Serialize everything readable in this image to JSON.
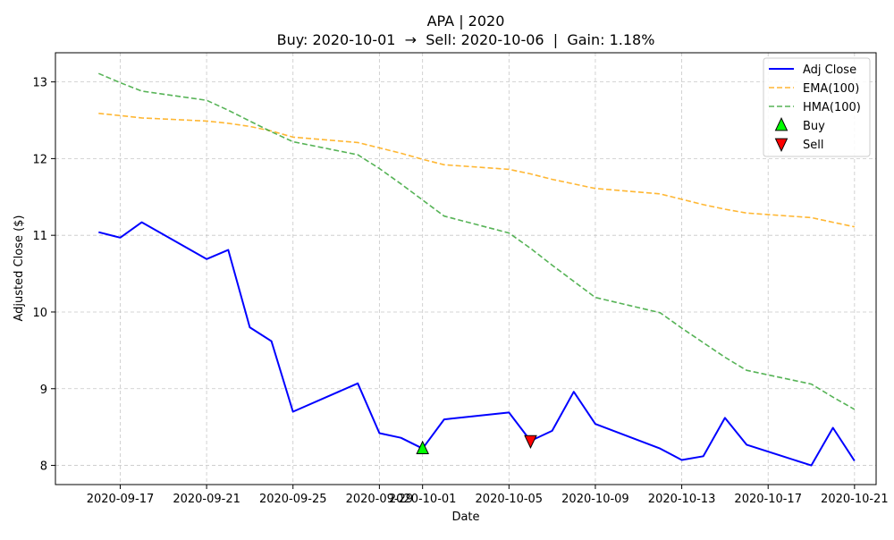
{
  "chart_data": {
    "type": "line",
    "title": "APA | 2020",
    "subtitle": "Buy: 2020-10-01  →  Sell: 2020-10-06  |  Gain: 1.18%",
    "xlabel": "Date",
    "ylabel": "Adjusted Close ($)",
    "ylim": [
      7.75,
      13.38
    ],
    "xlim": [
      "2020-09-14",
      "2020-10-22"
    ],
    "grid": true,
    "legend_position": "top-right",
    "x_ticks": [
      "2020-09-17",
      "2020-09-21",
      "2020-09-25",
      "2020-09-29",
      "2020-10-01",
      "2020-10-05",
      "2020-10-09",
      "2020-10-13",
      "2020-10-17",
      "2020-10-21"
    ],
    "y_ticks": [
      8,
      9,
      10,
      11,
      12,
      13
    ],
    "x": [
      "2020-09-16",
      "2020-09-17",
      "2020-09-18",
      "2020-09-21",
      "2020-09-22",
      "2020-09-23",
      "2020-09-24",
      "2020-09-25",
      "2020-09-28",
      "2020-09-29",
      "2020-09-30",
      "2020-10-01",
      "2020-10-02",
      "2020-10-05",
      "2020-10-06",
      "2020-10-07",
      "2020-10-08",
      "2020-10-09",
      "2020-10-12",
      "2020-10-13",
      "2020-10-14",
      "2020-10-15",
      "2020-10-16",
      "2020-10-19",
      "2020-10-20",
      "2020-10-21"
    ],
    "series": [
      {
        "name": "Adj Close",
        "style": "solid",
        "color": "#0000ff",
        "values": [
          11.04,
          10.97,
          11.17,
          10.69,
          10.81,
          9.8,
          9.62,
          8.7,
          9.07,
          8.42,
          8.36,
          8.22,
          8.6,
          8.69,
          8.32,
          8.45,
          8.96,
          8.54,
          8.22,
          8.07,
          8.12,
          8.62,
          8.27,
          8.0,
          8.49,
          8.06
        ]
      },
      {
        "name": "EMA(100)",
        "style": "dashed",
        "color": "#ffa500",
        "values": [
          12.59,
          12.56,
          12.53,
          12.49,
          12.46,
          12.42,
          12.36,
          12.28,
          12.21,
          12.14,
          12.07,
          11.99,
          11.92,
          11.86,
          11.8,
          11.73,
          11.67,
          11.61,
          11.54,
          11.47,
          11.4,
          11.34,
          11.29,
          11.23,
          11.17,
          11.11
        ]
      },
      {
        "name": "HMA(100)",
        "style": "dashed",
        "color": "#2ca02c",
        "values": [
          13.11,
          12.99,
          12.88,
          12.76,
          12.63,
          12.49,
          12.35,
          12.22,
          12.05,
          11.87,
          11.67,
          11.46,
          11.25,
          11.03,
          10.83,
          10.61,
          10.4,
          10.19,
          9.99,
          9.79,
          9.6,
          9.41,
          9.24,
          9.06,
          8.89,
          8.73
        ]
      }
    ],
    "markers": [
      {
        "name": "Buy",
        "date": "2020-10-01",
        "value": 8.22,
        "shape": "triangle-up",
        "color": "#00ff00"
      },
      {
        "name": "Sell",
        "date": "2020-10-06",
        "value": 8.32,
        "shape": "triangle-down",
        "color": "#ff0000"
      }
    ]
  }
}
